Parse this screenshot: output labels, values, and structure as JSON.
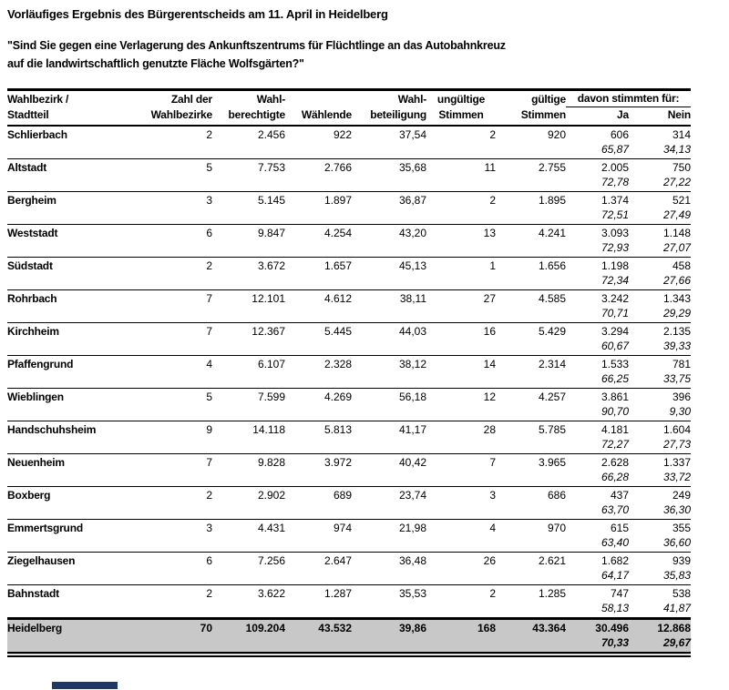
{
  "title": "Vorläufiges Ergebnis des Bürgerentscheids am 11. April in Heidelberg",
  "question": {
    "line1": "\"Sind Sie gegen eine Verlagerung des Ankunftszentrums für Flüchtlinge an das Autobahnkreuz",
    "line2": "auf die landwirtschaftlich genutzte Fläche Wolfsgärten?\""
  },
  "table": {
    "header_row1": [
      "Wahlbezirk /",
      "Zahl der",
      "Wahl-",
      "",
      "Wahl-",
      "ungültige",
      "gültige"
    ],
    "group_header": "davon stimmten für:",
    "header_row2": [
      "Stadtteil",
      "Wahlbezirke",
      "berechtigte",
      "Wählende",
      "beteiligung",
      "Stimmen",
      "Stimmen",
      "Ja",
      "Nein"
    ],
    "rows": [
      {
        "name": "Schlierbach",
        "districts": "2",
        "eligible": "2.456",
        "voters": "922",
        "turnout": "37,54",
        "invalid": "2",
        "valid": "920",
        "yes": "606",
        "no": "314",
        "yes_pct": "65,87",
        "no_pct": "34,13"
      },
      {
        "name": "Altstadt",
        "districts": "5",
        "eligible": "7.753",
        "voters": "2.766",
        "turnout": "35,68",
        "invalid": "11",
        "valid": "2.755",
        "yes": "2.005",
        "no": "750",
        "yes_pct": "72,78",
        "no_pct": "27,22"
      },
      {
        "name": "Bergheim",
        "districts": "3",
        "eligible": "5.145",
        "voters": "1.897",
        "turnout": "36,87",
        "invalid": "2",
        "valid": "1.895",
        "yes": "1.374",
        "no": "521",
        "yes_pct": "72,51",
        "no_pct": "27,49"
      },
      {
        "name": "Weststadt",
        "districts": "6",
        "eligible": "9.847",
        "voters": "4.254",
        "turnout": "43,20",
        "invalid": "13",
        "valid": "4.241",
        "yes": "3.093",
        "no": "1.148",
        "yes_pct": "72,93",
        "no_pct": "27,07"
      },
      {
        "name": "Südstadt",
        "districts": "2",
        "eligible": "3.672",
        "voters": "1.657",
        "turnout": "45,13",
        "invalid": "1",
        "valid": "1.656",
        "yes": "1.198",
        "no": "458",
        "yes_pct": "72,34",
        "no_pct": "27,66"
      },
      {
        "name": "Rohrbach",
        "districts": "7",
        "eligible": "12.101",
        "voters": "4.612",
        "turnout": "38,11",
        "invalid": "27",
        "valid": "4.585",
        "yes": "3.242",
        "no": "1.343",
        "yes_pct": "70,71",
        "no_pct": "29,29"
      },
      {
        "name": "Kirchheim",
        "districts": "7",
        "eligible": "12.367",
        "voters": "5.445",
        "turnout": "44,03",
        "invalid": "16",
        "valid": "5.429",
        "yes": "3.294",
        "no": "2.135",
        "yes_pct": "60,67",
        "no_pct": "39,33"
      },
      {
        "name": "Pfaffengrund",
        "districts": "4",
        "eligible": "6.107",
        "voters": "2.328",
        "turnout": "38,12",
        "invalid": "14",
        "valid": "2.314",
        "yes": "1.533",
        "no": "781",
        "yes_pct": "66,25",
        "no_pct": "33,75"
      },
      {
        "name": "Wieblingen",
        "districts": "5",
        "eligible": "7.599",
        "voters": "4.269",
        "turnout": "56,18",
        "invalid": "12",
        "valid": "4.257",
        "yes": "3.861",
        "no": "396",
        "yes_pct": "90,70",
        "no_pct": "9,30"
      },
      {
        "name": "Handschuhsheim",
        "districts": "9",
        "eligible": "14.118",
        "voters": "5.813",
        "turnout": "41,17",
        "invalid": "28",
        "valid": "5.785",
        "yes": "4.181",
        "no": "1.604",
        "yes_pct": "72,27",
        "no_pct": "27,73"
      },
      {
        "name": "Neuenheim",
        "districts": "7",
        "eligible": "9.828",
        "voters": "3.972",
        "turnout": "40,42",
        "invalid": "7",
        "valid": "3.965",
        "yes": "2.628",
        "no": "1.337",
        "yes_pct": "66,28",
        "no_pct": "33,72"
      },
      {
        "name": "Boxberg",
        "districts": "2",
        "eligible": "2.902",
        "voters": "689",
        "turnout": "23,74",
        "invalid": "3",
        "valid": "686",
        "yes": "437",
        "no": "249",
        "yes_pct": "63,70",
        "no_pct": "36,30"
      },
      {
        "name": "Emmertsgrund",
        "districts": "3",
        "eligible": "4.431",
        "voters": "974",
        "turnout": "21,98",
        "invalid": "4",
        "valid": "970",
        "yes": "615",
        "no": "355",
        "yes_pct": "63,40",
        "no_pct": "36,60"
      },
      {
        "name": "Ziegelhausen",
        "districts": "6",
        "eligible": "7.256",
        "voters": "2.647",
        "turnout": "36,48",
        "invalid": "26",
        "valid": "2.621",
        "yes": "1.682",
        "no": "939",
        "yes_pct": "64,17",
        "no_pct": "35,83"
      },
      {
        "name": "Bahnstadt",
        "districts": "2",
        "eligible": "3.622",
        "voters": "1.287",
        "turnout": "35,53",
        "invalid": "2",
        "valid": "1.285",
        "yes": "747",
        "no": "538",
        "yes_pct": "58,13",
        "no_pct": "41,87"
      }
    ],
    "total": {
      "name": "Heidelberg",
      "districts": "70",
      "eligible": "109.204",
      "voters": "43.532",
      "turnout": "39,86",
      "invalid": "168",
      "valid": "43.364",
      "yes": "30.496",
      "no": "12.868",
      "yes_pct": "70,33",
      "no_pct": "29,67"
    }
  },
  "colors": {
    "total_row_bg": "#c8c8c8",
    "footer_bar": "#1f3864"
  }
}
